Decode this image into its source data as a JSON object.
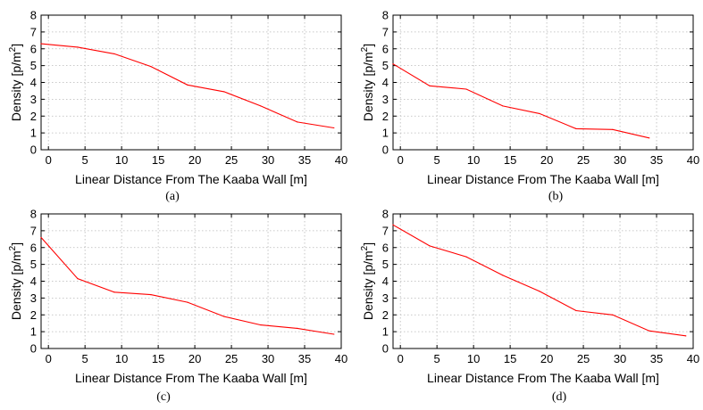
{
  "colors": {
    "series": "#ff0000",
    "frame": "#000000",
    "grid": "#b8b8b8"
  },
  "chart_data": [
    {
      "type": "line",
      "caption": "(a)",
      "xlabel": "Linear Distance From The Kaaba Wall [m]",
      "ylabel": "Density [p/m",
      "ylabel_sup": "2",
      "ylabel_tail": "]",
      "xlim": [
        -1,
        40
      ],
      "ylim": [
        0,
        8
      ],
      "xticks": [
        0,
        5,
        10,
        15,
        20,
        25,
        30,
        35,
        40
      ],
      "yticks": [
        0,
        1,
        2,
        3,
        4,
        5,
        6,
        7,
        8
      ],
      "grid": true,
      "x": [
        -1,
        4,
        9,
        14,
        19,
        24,
        29,
        34,
        39
      ],
      "y": [
        6.3,
        6.1,
        5.7,
        4.95,
        3.85,
        3.45,
        2.6,
        1.65,
        1.3
      ]
    },
    {
      "type": "line",
      "caption": "(b)",
      "xlabel": "Linear Distance From The Kaaba Wall [m]",
      "ylabel": "Density [p/m",
      "ylabel_sup": "2",
      "ylabel_tail": "]",
      "xlim": [
        -1,
        40
      ],
      "ylim": [
        0,
        8
      ],
      "xticks": [
        0,
        5,
        10,
        15,
        20,
        25,
        30,
        35,
        40
      ],
      "yticks": [
        0,
        1,
        2,
        3,
        4,
        5,
        6,
        7,
        8
      ],
      "grid": true,
      "x": [
        -1,
        4,
        9,
        14,
        19,
        24,
        29,
        34
      ],
      "y": [
        5.1,
        3.8,
        3.6,
        2.6,
        2.15,
        1.25,
        1.2,
        0.7
      ]
    },
    {
      "type": "line",
      "caption": "(c)",
      "xlabel": "Linear Distance From The Kaaba Wall [m]",
      "ylabel": "Density [p/m",
      "ylabel_sup": "2",
      "ylabel_tail": "]",
      "xlim": [
        -1,
        40
      ],
      "ylim": [
        0,
        8
      ],
      "xticks": [
        0,
        5,
        10,
        15,
        20,
        25,
        30,
        35,
        40
      ],
      "yticks": [
        0,
        1,
        2,
        3,
        4,
        5,
        6,
        7,
        8
      ],
      "grid": true,
      "x": [
        -1,
        4,
        9,
        14,
        19,
        24,
        29,
        34,
        39
      ],
      "y": [
        6.6,
        4.15,
        3.35,
        3.2,
        2.75,
        1.9,
        1.4,
        1.2,
        0.85
      ]
    },
    {
      "type": "line",
      "caption": "(d)",
      "xlabel": "Linear Distance From The Kaaba Wall [m]",
      "ylabel": "Density [p/m",
      "ylabel_sup": "2",
      "ylabel_tail": "]",
      "xlim": [
        -1,
        40
      ],
      "ylim": [
        0,
        8
      ],
      "xticks": [
        0,
        5,
        10,
        15,
        20,
        25,
        30,
        35,
        40
      ],
      "yticks": [
        0,
        1,
        2,
        3,
        4,
        5,
        6,
        7,
        8
      ],
      "grid": true,
      "x": [
        -1,
        4,
        9,
        14,
        19,
        24,
        29,
        34,
        39
      ],
      "y": [
        7.35,
        6.1,
        5.45,
        4.35,
        3.4,
        2.25,
        2.0,
        1.05,
        0.75
      ]
    }
  ]
}
